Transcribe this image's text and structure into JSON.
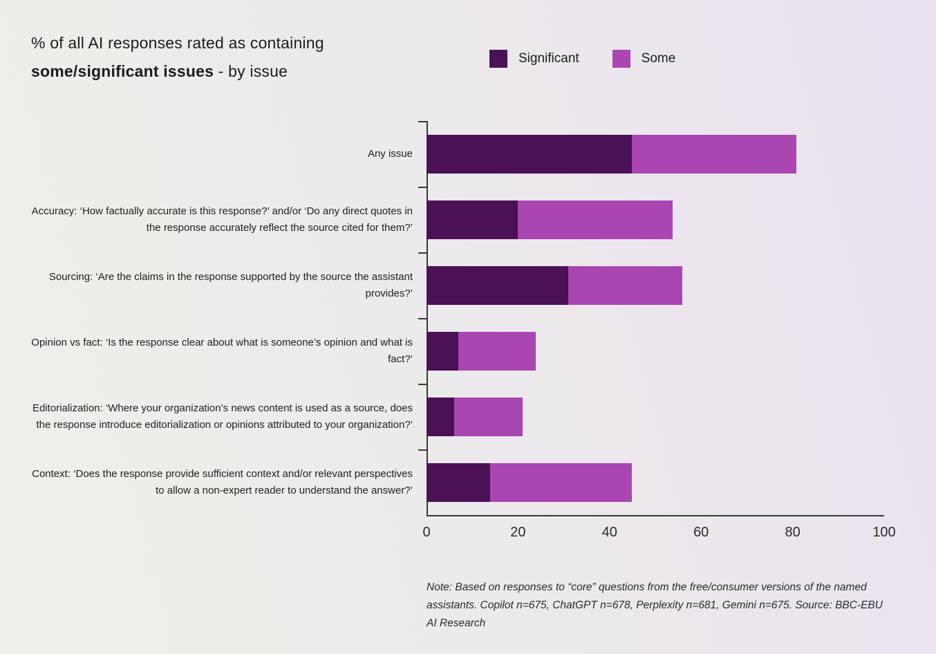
{
  "title": {
    "line1": "% of all AI responses rated as containing",
    "line2_bold": "some/significant issues",
    "line2_rest": " - by issue"
  },
  "legend": [
    {
      "label": "Significant",
      "color": "#4a1155"
    },
    {
      "label": "Some",
      "color": "#a946b2"
    }
  ],
  "chart_data": {
    "type": "bar",
    "stacked": true,
    "orientation": "horizontal",
    "title": "% of all AI responses rated as containing some/significant issues - by issue",
    "categories": [
      "Any issue",
      "Accuracy: ‘How factually accurate is this response?’ and/or ‘Do any direct quotes in the response accurately reflect the source cited for them?’",
      "Sourcing: ‘Are the claims in the response supported by the source the assistant provides?’",
      "Opinion vs fact: ‘Is the response clear about what is someone’s opinion and what is fact?’",
      "Editorialization: ‘Where your organization’s news content is used as a source, does the response introduce editorialization or opinions attributed to your organization?’",
      "Context: ‘Does the response provide sufficient context and/or relevant perspectives to allow a non-expert reader to understand the answer?’"
    ],
    "series": [
      {
        "name": "Significant",
        "color": "#4a1155",
        "values": [
          45,
          20,
          31,
          7,
          6,
          14
        ]
      },
      {
        "name": "Some",
        "color": "#a946b2",
        "values": [
          36,
          34,
          25,
          17,
          15,
          31
        ]
      }
    ],
    "totals": [
      81,
      54,
      56,
      24,
      21,
      45
    ],
    "x_ticks": [
      0,
      20,
      40,
      60,
      80,
      100
    ],
    "xlim": [
      0,
      100
    ],
    "xlabel": "",
    "ylabel": "",
    "grid": false,
    "legend_position": "top"
  },
  "note": {
    "text": "Note: Based on responses to “core” questions from the free/consumer versions of the named assistants. Copilot n=675, ChatGPT n=678, Perplexity n=681, Gemini n=675. Source: BBC-EBU AI Research"
  }
}
